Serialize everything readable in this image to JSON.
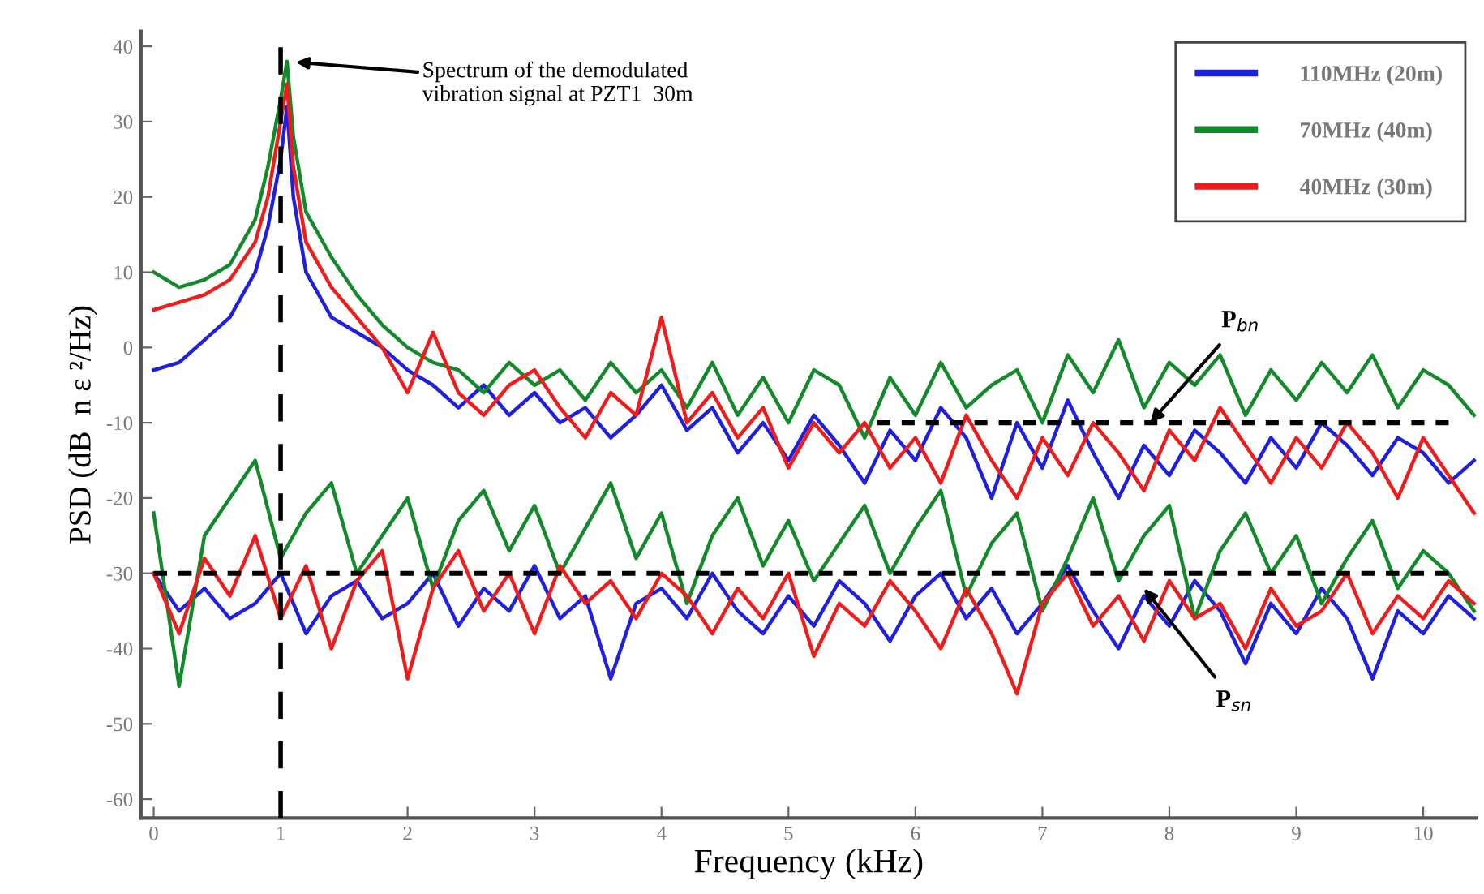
{
  "chart_data": {
    "type": "line",
    "xlabel": "Frequency (kHz)",
    "ylabel": "PSD (dB  n ε ²/Hz)",
    "xlim": [
      -0.1,
      10.42
    ],
    "ylim": [
      -62.5,
      42
    ],
    "xticks": [
      0,
      1,
      2,
      3,
      4,
      5,
      6,
      7,
      8,
      9,
      10
    ],
    "yticks": [
      -60,
      -50,
      -40,
      -30,
      -20,
      -10,
      0,
      10,
      20,
      30,
      40
    ],
    "grid": false,
    "legend": "top right",
    "line_style": "solid",
    "marker": "none",
    "x": [
      0,
      0.2,
      0.4,
      0.6,
      0.8,
      0.9,
      1.0,
      1.05,
      1.1,
      1.2,
      1.4,
      1.6,
      1.8,
      2.0,
      2.2,
      2.4,
      2.6,
      2.8,
      3.0,
      3.2,
      3.4,
      3.6,
      3.8,
      4.0,
      4.2,
      4.4,
      4.6,
      4.8,
      5.0,
      5.2,
      5.4,
      5.6,
      5.8,
      6.0,
      6.2,
      6.4,
      6.6,
      6.8,
      7.0,
      7.2,
      7.4,
      7.6,
      7.8,
      8.0,
      8.2,
      8.4,
      8.6,
      8.8,
      9.0,
      9.2,
      9.4,
      9.6,
      9.8,
      10.0,
      10.2,
      10.4
    ],
    "series": [
      {
        "name": "110MHz (20m)",
        "color": "#1f1fe0",
        "values": [
          -3,
          -2,
          1,
          4,
          10,
          16,
          25,
          32,
          20,
          10,
          4,
          2,
          0,
          -3,
          -5,
          -8,
          -5,
          -9,
          -6,
          -10,
          -8,
          -12,
          -9,
          -5,
          -11,
          -8,
          -14,
          -10,
          -15,
          -9,
          -13,
          -18,
          -11,
          -15,
          -8,
          -12,
          -20,
          -10,
          -16,
          -7,
          -14,
          -20,
          -13,
          -17,
          -11,
          -14,
          -18,
          -12,
          -16,
          -10,
          -13,
          -17,
          -12,
          -14,
          -18,
          -15
        ]
      },
      {
        "name": "70MHz (40m)",
        "color": "#138a2a",
        "values": [
          10,
          8,
          9,
          11,
          17,
          24,
          33,
          38,
          28,
          18,
          12,
          7,
          3,
          0,
          -2,
          -3,
          -6,
          -2,
          -5,
          -3,
          -7,
          -2,
          -6,
          -3,
          -8,
          -2,
          -9,
          -4,
          -10,
          -3,
          -5,
          -12,
          -4,
          -9,
          -2,
          -8,
          -5,
          -3,
          -10,
          -1,
          -6,
          1,
          -8,
          -2,
          -5,
          -1,
          -9,
          -3,
          -7,
          -2,
          -6,
          -1,
          -8,
          -3,
          -5,
          -9
        ]
      },
      {
        "name": "40MHz (30m)",
        "color": "#f01c1c",
        "values": [
          5,
          6,
          7,
          9,
          14,
          20,
          30,
          35,
          24,
          14,
          8,
          4,
          0,
          -6,
          2,
          -6,
          -9,
          -5,
          -3,
          -8,
          -12,
          -6,
          -9,
          4,
          -10,
          -6,
          -12,
          -8,
          -16,
          -10,
          -14,
          -10,
          -16,
          -12,
          -18,
          -9,
          -15,
          -20,
          -12,
          -17,
          -10,
          -14,
          -19,
          -11,
          -15,
          -8,
          -13,
          -18,
          -12,
          -16,
          -10,
          -14,
          -20,
          -12,
          -17,
          -22
        ]
      },
      {
        "color": "#1f1fe0",
        "x": [
          0,
          0.2,
          0.4,
          0.6,
          0.8,
          1.0,
          1.2,
          1.4,
          1.6,
          1.8,
          2.0,
          2.2,
          2.4,
          2.6,
          2.8,
          3.0,
          3.2,
          3.4,
          3.6,
          3.8,
          4.0,
          4.2,
          4.4,
          4.6,
          4.8,
          5.0,
          5.2,
          5.4,
          5.6,
          5.8,
          6.0,
          6.2,
          6.4,
          6.6,
          6.8,
          7.0,
          7.2,
          7.4,
          7.6,
          7.8,
          8.0,
          8.2,
          8.4,
          8.6,
          8.8,
          9.0,
          9.2,
          9.4,
          9.6,
          9.8,
          10.0,
          10.2,
          10.4
        ],
        "values": [
          -30,
          -35,
          -32,
          -36,
          -34,
          -30,
          -38,
          -33,
          -31,
          -36,
          -34,
          -30,
          -37,
          -32,
          -35,
          -29,
          -36,
          -33,
          -44,
          -34,
          -32,
          -36,
          -30,
          -35,
          -38,
          -33,
          -37,
          -31,
          -34,
          -39,
          -33,
          -30,
          -36,
          -32,
          -38,
          -34,
          -29,
          -35,
          -40,
          -33,
          -37,
          -31,
          -35,
          -42,
          -34,
          -38,
          -32,
          -36,
          -44,
          -35,
          -38,
          -33,
          -36
        ]
      },
      {
        "color": "#138a2a",
        "x": [
          0,
          0.2,
          0.4,
          0.6,
          0.8,
          1.0,
          1.2,
          1.4,
          1.6,
          1.8,
          2.0,
          2.2,
          2.4,
          2.6,
          2.8,
          3.0,
          3.2,
          3.4,
          3.6,
          3.8,
          4.0,
          4.2,
          4.4,
          4.6,
          4.8,
          5.0,
          5.2,
          5.4,
          5.6,
          5.8,
          6.0,
          6.2,
          6.4,
          6.6,
          6.8,
          7.0,
          7.2,
          7.4,
          7.6,
          7.8,
          8.0,
          8.2,
          8.4,
          8.6,
          8.8,
          9.0,
          9.2,
          9.4,
          9.6,
          9.8,
          10.0,
          10.2,
          10.4
        ],
        "values": [
          -22,
          -45,
          -25,
          -20,
          -15,
          -28,
          -22,
          -18,
          -30,
          -25,
          -20,
          -32,
          -23,
          -19,
          -27,
          -21,
          -30,
          -24,
          -18,
          -28,
          -22,
          -34,
          -25,
          -20,
          -29,
          -23,
          -31,
          -26,
          -21,
          -30,
          -24,
          -19,
          -33,
          -26,
          -22,
          -35,
          -28,
          -20,
          -31,
          -25,
          -21,
          -36,
          -27,
          -22,
          -30,
          -25,
          -34,
          -28,
          -23,
          -32,
          -27,
          -30,
          -35
        ]
      },
      {
        "color": "#f01c1c",
        "x": [
          0,
          0.2,
          0.4,
          0.6,
          0.8,
          1.0,
          1.2,
          1.4,
          1.6,
          1.8,
          2.0,
          2.2,
          2.4,
          2.6,
          2.8,
          3.0,
          3.2,
          3.4,
          3.6,
          3.8,
          4.0,
          4.2,
          4.4,
          4.6,
          4.8,
          5.0,
          5.2,
          5.4,
          5.6,
          5.8,
          6.0,
          6.2,
          6.4,
          6.6,
          6.8,
          7.0,
          7.2,
          7.4,
          7.6,
          7.8,
          8.0,
          8.2,
          8.4,
          8.6,
          8.8,
          9.0,
          9.2,
          9.4,
          9.6,
          9.8,
          10.0,
          10.2,
          10.4
        ],
        "values": [
          -30,
          -38,
          -28,
          -33,
          -25,
          -36,
          -29,
          -40,
          -31,
          -27,
          -44,
          -32,
          -27,
          -35,
          -30,
          -38,
          -29,
          -34,
          -31,
          -36,
          -30,
          -33,
          -38,
          -32,
          -36,
          -30,
          -41,
          -34,
          -37,
          -31,
          -35,
          -40,
          -32,
          -38,
          -46,
          -34,
          -30,
          -37,
          -33,
          -39,
          -31,
          -36,
          -34,
          -40,
          -32,
          -37,
          -35,
          -30,
          -38,
          -33,
          -36,
          -31,
          -34
        ]
      },
      {
        "color": "#000000",
        "line_style": "dashed",
        "x": [
          5.7,
          10.2
        ],
        "values": [
          -10,
          -10
        ]
      },
      {
        "color": "#000000",
        "line_style": "dashed",
        "x": [
          0,
          10.2
        ],
        "values": [
          -30,
          -30
        ]
      }
    ],
    "ref_lines": [
      {
        "axis": "x",
        "value": 1,
        "color": "#000000",
        "line_style": "dashed"
      }
    ],
    "annotations": [
      {
        "text": "Spectrum of the demodulated\nvibration signal at PZT1  30m",
        "x": 1.05,
        "y": 38
      },
      {
        "text": "P$_{bn}$",
        "x": 7.85,
        "y": -10
      },
      {
        "text": "P$_{sn}$",
        "x": 7.8,
        "y": -32
      }
    ]
  }
}
